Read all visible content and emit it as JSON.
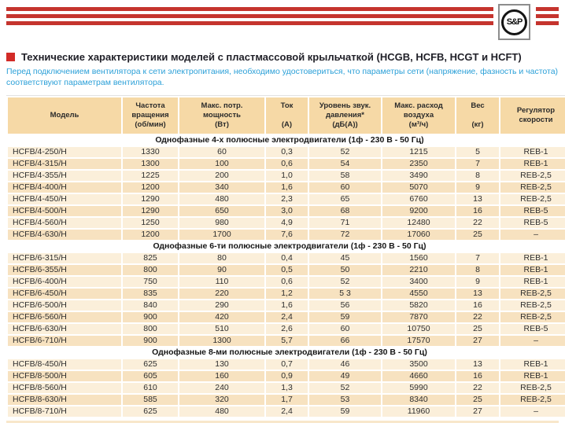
{
  "page": {
    "logo_text": "S&P",
    "title": "Технические характеристики моделей с пластмассовой крыльчаткой (HCGB, HCFB, HCGT и HCFT)",
    "subtitle": "Перед подключением вентилятора к сети электропитания, необходимо удостовериться, что параметры сети (напряжение, фазность и частота) соответствуют параметрам вентилятора."
  },
  "colors": {
    "stripe_red": "#C5342E",
    "accent_red": "#D22B27",
    "subtitle_blue": "#2BA0D8",
    "table_header_bg": "#F6D9A6",
    "row_light": "#FBEFDA",
    "row_dark": "#F7E2C0"
  },
  "table": {
    "columns": [
      {
        "lines": [
          "Модель"
        ]
      },
      {
        "lines": [
          "Частота",
          "вращения",
          "(об/мин)"
        ]
      },
      {
        "lines": [
          "Макс. потр.",
          "мощность",
          "(Вт)"
        ]
      },
      {
        "lines": [
          "Ток",
          "",
          "(А)"
        ]
      },
      {
        "lines": [
          "Уровень звук.",
          "давления*",
          "(дБ(А))"
        ]
      },
      {
        "lines": [
          "Макс. расход",
          "воздуха",
          "(м³/ч)"
        ]
      },
      {
        "lines": [
          "Вес",
          "",
          "(кг)"
        ]
      },
      {
        "lines": [
          "Регулятор",
          "скорости"
        ]
      }
    ],
    "sections": [
      {
        "title": "Однофазные 4-х полюсные электродвигатели (1ф - 230 В - 50 Гц)",
        "rows": [
          [
            "HCFB/4-250/H",
            "1330",
            "60",
            "0,3",
            "52",
            "1215",
            "5",
            "REB-1"
          ],
          [
            "HCFB/4-315/H",
            "1300",
            "100",
            "0,6",
            "54",
            "2350",
            "7",
            "REB-1"
          ],
          [
            "HCFB/4-355/H",
            "1225",
            "200",
            "1,0",
            "58",
            "3490",
            "8",
            "REB-2,5"
          ],
          [
            "HCFB/4-400/H",
            "1200",
            "340",
            "1,6",
            "60",
            "5070",
            "9",
            "REB-2,5"
          ],
          [
            "HCFB/4-450/H",
            "1290",
            "480",
            "2,3",
            "65",
            "6760",
            "13",
            "REB-2,5"
          ],
          [
            "HCFB/4-500/H",
            "1290",
            "650",
            "3,0",
            "68",
            "9200",
            "16",
            "REB-5"
          ],
          [
            "HCFB/4-560/H",
            "1250",
            "980",
            "4,9",
            "71",
            "12480",
            "22",
            "REB-5"
          ],
          [
            "HCFB/4-630/H",
            "1200",
            "1700",
            "7,6",
            "72",
            "17060",
            "25",
            "–"
          ]
        ]
      },
      {
        "title": "Однофазные 6-ти полюсные электродвигатели (1ф - 230 В - 50 Гц)",
        "rows": [
          [
            "HCFB/6-315/H",
            "825",
            "80",
            "0,4",
            "45",
            "1560",
            "7",
            "REB-1"
          ],
          [
            "HCFB/6-355/H",
            "800",
            "90",
            "0,5",
            "50",
            "2210",
            "8",
            "REB-1"
          ],
          [
            "HCFB/6-400/H",
            "750",
            "110",
            "0,6",
            "52",
            "3400",
            "9",
            "REB-1"
          ],
          [
            "HCFB/6-450/H",
            "835",
            "220",
            "1,2",
            "5 3",
            "4550",
            "13",
            "REB-2,5"
          ],
          [
            "HCFB/6-500/H",
            "840",
            "290",
            "1,6",
            "56",
            "5820",
            "16",
            "REB-2,5"
          ],
          [
            "HCFB/6-560/H",
            "900",
            "420",
            "2,4",
            "59",
            "7870",
            "22",
            "REB-2,5"
          ],
          [
            "HCFB/6-630/H",
            "800",
            "510",
            "2,6",
            "60",
            "10750",
            "25",
            "REB-5"
          ],
          [
            "HCFB/6-710/H",
            "900",
            "1300",
            "5,7",
            "66",
            "17570",
            "27",
            "–"
          ]
        ]
      },
      {
        "title": "Однофазные 8-ми полюсные электродвигатели (1ф - 230 В - 50 Гц)",
        "rows": [
          [
            "HCFB/8-450/H",
            "625",
            "130",
            "0,7",
            "46",
            "3500",
            "13",
            "REB-1"
          ],
          [
            "HCFB/8-500/H",
            "605",
            "160",
            "0,9",
            "49",
            "4660",
            "16",
            "REB-1"
          ],
          [
            "HCFB/8-560/H",
            "610",
            "240",
            "1,3",
            "52",
            "5990",
            "22",
            "REB-2,5"
          ],
          [
            "HCFB/8-630/H",
            "585",
            "320",
            "1,7",
            "53",
            "8340",
            "25",
            "REB-2,5"
          ],
          [
            "HCFB/8-710/H",
            "625",
            "480",
            "2,4",
            "59",
            "11960",
            "27",
            "–"
          ]
        ]
      }
    ]
  }
}
